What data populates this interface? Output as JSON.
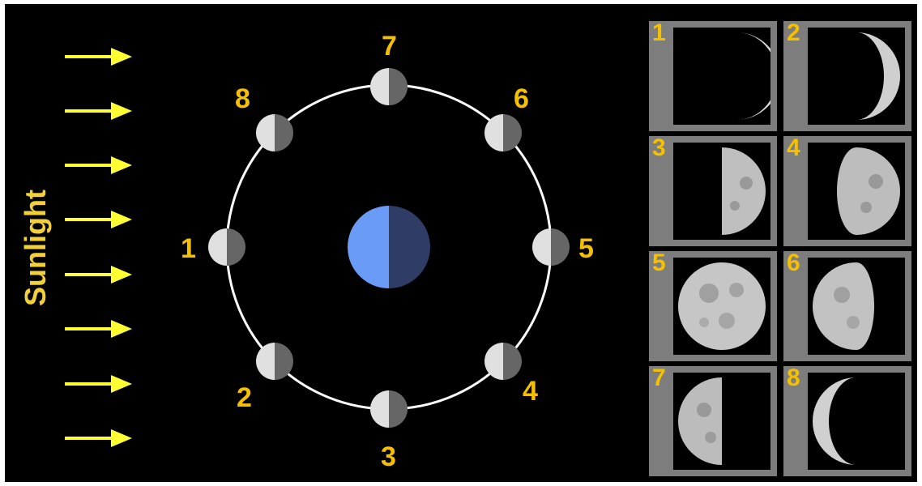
{
  "sunlight_label": "Sunlight",
  "orbit_labels": [
    "1",
    "2",
    "3",
    "4",
    "5",
    "6",
    "7",
    "8"
  ],
  "thumbnail_labels": [
    "1",
    "2",
    "3",
    "4",
    "5",
    "6",
    "7",
    "8"
  ],
  "colors": {
    "background": "#000000",
    "arrow": "#ffff33",
    "label": "#f5c000",
    "earth_lit": "#6a9cf7",
    "earth_dark": "#2e3c66",
    "moon_lit": "#e0e0e0",
    "moon_dark": "#666666",
    "orbit": "#ffffff",
    "thumb_frame": "#7d7d7d"
  }
}
